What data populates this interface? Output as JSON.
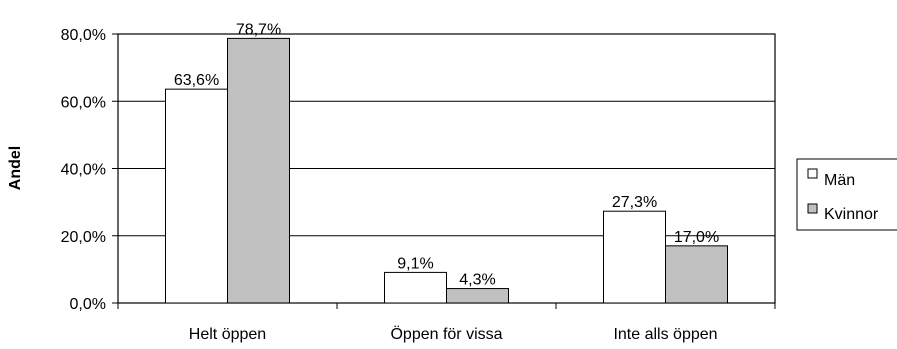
{
  "chart_data": {
    "type": "bar",
    "categories": [
      "Helt öppen",
      "Öppen för vissa",
      "Inte alls öppen"
    ],
    "series": [
      {
        "name": "Män",
        "values": [
          63.6,
          9.1,
          27.3
        ],
        "labels": [
          "63,6%",
          "9,1%",
          "27,3%"
        ],
        "color": "#ffffff"
      },
      {
        "name": "Kvinnor",
        "values": [
          78.7,
          4.3,
          17.0
        ],
        "labels": [
          "78,7%",
          "4,3%",
          "17,0%"
        ],
        "color": "#c0c0c0"
      }
    ],
    "ylabel": "Andel",
    "xlabel": "",
    "ylim": [
      0,
      80
    ],
    "yticks": [
      0,
      20,
      40,
      60,
      80
    ],
    "ytick_labels": [
      "0,0%",
      "20,0%",
      "40,0%",
      "60,0%",
      "80,0%"
    ],
    "grid": true,
    "legend_position": "right"
  }
}
